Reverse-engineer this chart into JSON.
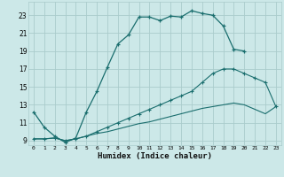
{
  "xlabel": "Humidex (Indice chaleur)",
  "bg_color": "#cce8e8",
  "grid_color": "#aacccc",
  "line_color": "#1a6e6e",
  "xlim": [
    -0.5,
    23.5
  ],
  "ylim": [
    8.5,
    24.5
  ],
  "xticks": [
    0,
    1,
    2,
    3,
    4,
    5,
    6,
    7,
    8,
    9,
    10,
    11,
    12,
    13,
    14,
    15,
    16,
    17,
    18,
    19,
    20,
    21,
    22,
    23
  ],
  "yticks": [
    9,
    11,
    13,
    15,
    17,
    19,
    21,
    23
  ],
  "series1_x": [
    0,
    1,
    2,
    3,
    4,
    5,
    6,
    7,
    8,
    9,
    10,
    11,
    12,
    13,
    14,
    15,
    16,
    17,
    18,
    19,
    20
  ],
  "series1_y": [
    12.2,
    10.5,
    9.5,
    8.8,
    9.3,
    12.2,
    14.5,
    17.2,
    19.8,
    20.8,
    22.8,
    22.8,
    22.4,
    22.9,
    22.8,
    23.5,
    23.2,
    23.0,
    21.8,
    19.2,
    19.0
  ],
  "series2_x": [
    0,
    1,
    2,
    3,
    4,
    5,
    6,
    7,
    8,
    9,
    10,
    11,
    12,
    13,
    14,
    15,
    16,
    17,
    18,
    19,
    20,
    21,
    22,
    23
  ],
  "series2_y": [
    9.2,
    9.2,
    9.3,
    9.0,
    9.2,
    9.5,
    10.0,
    10.5,
    11.0,
    11.5,
    12.0,
    12.5,
    13.0,
    13.5,
    14.0,
    14.5,
    15.5,
    16.5,
    17.0,
    17.0,
    16.5,
    16.0,
    15.5,
    12.8
  ],
  "series3_x": [
    0,
    1,
    2,
    3,
    4,
    5,
    6,
    7,
    8,
    9,
    10,
    11,
    12,
    13,
    14,
    15,
    16,
    17,
    18,
    19,
    20,
    21,
    22,
    23
  ],
  "series3_y": [
    9.2,
    9.2,
    9.3,
    9.0,
    9.2,
    9.5,
    9.8,
    10.0,
    10.3,
    10.6,
    10.9,
    11.1,
    11.4,
    11.7,
    12.0,
    12.3,
    12.6,
    12.8,
    13.0,
    13.2,
    13.0,
    12.5,
    12.0,
    12.8
  ]
}
